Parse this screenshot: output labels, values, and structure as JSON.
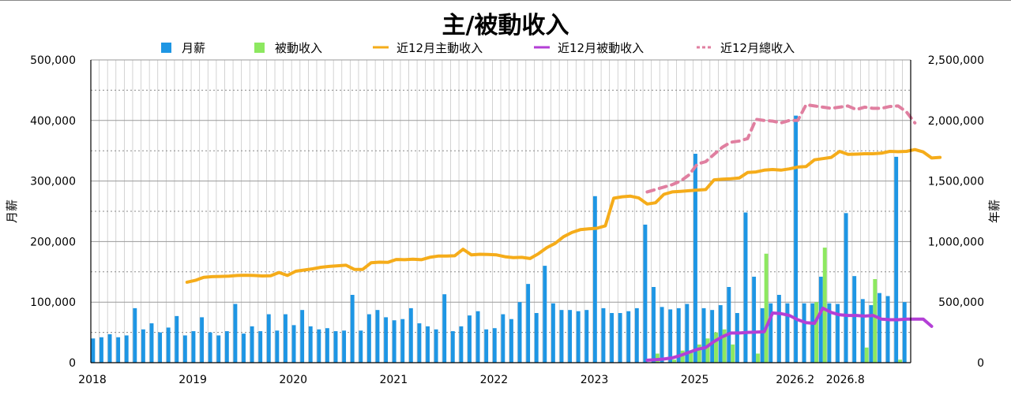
{
  "chart_data": {
    "type": "bar",
    "title": "主/被動收入",
    "ylabel": "月薪",
    "y2label": "年薪",
    "ylim": [
      0,
      500000
    ],
    "y2lim": [
      0,
      2500000
    ],
    "yticks": [
      "0",
      "100,000",
      "200,000",
      "300,000",
      "400,000",
      "500,000"
    ],
    "y2ticks": [
      "0",
      "500,000",
      "1,000,000",
      "1,500,000",
      "2,000,000",
      "2,500,000"
    ],
    "xtick_labels": [
      {
        "label": "2018",
        "index": 0
      },
      {
        "label": "2019",
        "index": 12
      },
      {
        "label": "2020",
        "index": 24
      },
      {
        "label": "2021",
        "index": 36
      },
      {
        "label": "2022",
        "index": 48
      },
      {
        "label": "2023",
        "index": 60
      },
      {
        "label": "2025",
        "index": 72
      },
      {
        "label": "2026.2",
        "index": 84
      },
      {
        "label": "2026.8",
        "index": 90
      }
    ],
    "legend": [
      "月薪",
      "被動收入",
      "近12月主動收入",
      "近12月被動收入",
      "近12月總收入"
    ],
    "legend_position": "top",
    "grid": true,
    "colors": {
      "salary": "#1e96e4",
      "passive": "#8de860",
      "active12": "#f5ac1a",
      "passive12": "#b33fd6",
      "total12": "#e07fa0"
    },
    "series": [
      {
        "name": "月薪",
        "axis": "left",
        "kind": "bar",
        "values": [
          40000,
          42000,
          47000,
          42000,
          45000,
          90000,
          55000,
          65000,
          50000,
          58000,
          77000,
          45000,
          52000,
          75000,
          50000,
          45000,
          52000,
          97000,
          48000,
          60000,
          52000,
          80000,
          53000,
          80000,
          62000,
          87000,
          60000,
          55000,
          57000,
          52000,
          53000,
          112000,
          53000,
          80000,
          87000,
          75000,
          70000,
          72000,
          90000,
          65000,
          60000,
          55000,
          113000,
          52000,
          60000,
          78000,
          85000,
          55000,
          57000,
          80000,
          72000,
          100000,
          130000,
          82000,
          160000,
          98000,
          87000,
          87000,
          85000,
          87000,
          275000,
          90000,
          82000,
          82000,
          85000,
          90000,
          228000,
          125000,
          92000,
          88000,
          90000,
          97000,
          345000,
          90000,
          87000,
          95000,
          125000,
          82000,
          248000,
          142000,
          90000,
          98000,
          112000,
          98000,
          408000,
          98000,
          98000,
          142000,
          98000,
          97000,
          247000,
          143000,
          105000,
          95000,
          115000,
          110000,
          340000,
          100000
        ]
      },
      {
        "name": "被動收入",
        "axis": "left",
        "kind": "bar",
        "values": [
          0,
          0,
          0,
          0,
          0,
          0,
          0,
          0,
          0,
          0,
          0,
          0,
          0,
          0,
          0,
          0,
          0,
          0,
          0,
          0,
          0,
          0,
          0,
          0,
          0,
          0,
          0,
          0,
          0,
          0,
          0,
          0,
          0,
          0,
          0,
          0,
          0,
          0,
          0,
          0,
          0,
          0,
          0,
          0,
          0,
          0,
          0,
          0,
          0,
          0,
          0,
          0,
          0,
          0,
          0,
          0,
          0,
          0,
          0,
          0,
          0,
          0,
          0,
          0,
          0,
          0,
          0,
          15000,
          0,
          5000,
          20000,
          20000,
          30000,
          40000,
          50000,
          55000,
          30000,
          0,
          0,
          15000,
          180000,
          0,
          0,
          0,
          0,
          0,
          100000,
          190000,
          0,
          0,
          0,
          0,
          25000,
          138000,
          0,
          0,
          5000,
          0,
          0,
          105000
        ]
      },
      {
        "name": "近12月主動收入",
        "axis": "right",
        "kind": "line",
        "start_index": 11,
        "values": [
          665000,
          680000,
          705000,
          710000,
          712000,
          715000,
          720000,
          722000,
          720000,
          716000,
          718000,
          745000,
          720000,
          755000,
          765000,
          775000,
          788000,
          795000,
          800000,
          805000,
          770000,
          770000,
          825000,
          830000,
          828000,
          852000,
          850000,
          855000,
          850000,
          870000,
          880000,
          880000,
          883000,
          937000,
          890000,
          895000,
          893000,
          890000,
          875000,
          868000,
          870000,
          860000,
          900000,
          950000,
          985000,
          1040000,
          1075000,
          1098000,
          1105000,
          1110000,
          1130000,
          1358000,
          1370000,
          1375000,
          1360000,
          1310000,
          1320000,
          1390000,
          1410000,
          1415000,
          1420000,
          1425000,
          1430000,
          1510000,
          1515000,
          1518000,
          1525000,
          1570000,
          1575000,
          1590000,
          1595000,
          1590000,
          1600000,
          1615000,
          1620000,
          1675000,
          1685000,
          1695000,
          1745000,
          1720000,
          1722000,
          1725000,
          1725000,
          1730000,
          1745000,
          1742000,
          1745000,
          1760000,
          1740000,
          1690000,
          1695000
        ]
      },
      {
        "name": "近12月被動收入",
        "axis": "right",
        "kind": "line",
        "start_index": 66,
        "values": [
          20000,
          25000,
          30000,
          40000,
          60000,
          85000,
          110000,
          125000,
          175000,
          215000,
          245000,
          245000,
          250000,
          252000,
          255000,
          410000,
          405000,
          390000,
          355000,
          330000,
          325000,
          450000,
          415000,
          395000,
          390000,
          390000,
          385000,
          390000,
          360000,
          355000,
          355000,
          360000,
          360000,
          360000,
          300000
        ]
      },
      {
        "name": "近12月總收入",
        "axis": "right",
        "kind": "line",
        "dashed": true,
        "start_index": 66,
        "values": [
          1410000,
          1430000,
          1450000,
          1470000,
          1500000,
          1550000,
          1640000,
          1660000,
          1720000,
          1780000,
          1820000,
          1830000,
          1850000,
          2010000,
          2000000,
          1995000,
          1980000,
          2000000,
          2000000,
          2130000,
          2120000,
          2110000,
          2100000,
          2110000,
          2120000,
          2090000,
          2110000,
          2100000,
          2100000,
          2115000,
          2120000,
          2070000,
          1980000
        ]
      }
    ]
  }
}
